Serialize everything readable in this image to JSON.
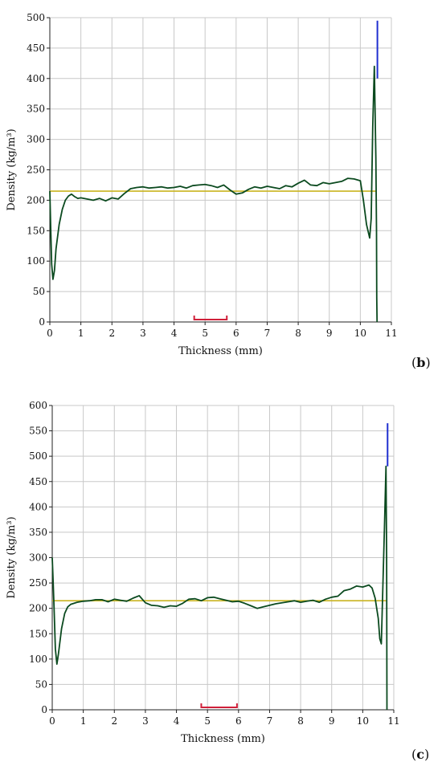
{
  "colors": {
    "profile": "#0b4a1f",
    "mean_line": "#c9b420",
    "peak": "#1f2fd0",
    "marker": "#d0203a",
    "grid": "#c8c8c8",
    "axis": "#222222"
  },
  "panels": [
    {
      "label_open": "(",
      "label_letter": "b",
      "label_close": ")"
    },
    {
      "label_open": "(",
      "label_letter": "c",
      "label_close": ")"
    }
  ],
  "chart_data": [
    {
      "type": "line",
      "title": "",
      "xlabel": "Thickness (mm)",
      "ylabel": "Density (kg/m³)",
      "xlim": [
        0,
        11
      ],
      "ylim": [
        0,
        500
      ],
      "xticks": [
        "0",
        "1",
        "2",
        "3",
        "4",
        "5",
        "6",
        "7",
        "8",
        "9",
        "10",
        "11"
      ],
      "yticks": [
        "0",
        "50",
        "100",
        "150",
        "200",
        "250",
        "300",
        "350",
        "400",
        "450",
        "500"
      ],
      "grid": true,
      "series": [
        {
          "x": [
            0.0,
            0.03,
            0.06,
            0.1,
            0.15,
            0.2,
            0.3,
            0.4,
            0.5,
            0.6,
            0.7,
            0.8,
            0.9,
            1.0,
            1.2,
            1.4,
            1.6,
            1.8,
            2.0,
            2.2,
            2.4,
            2.6,
            2.8,
            3.0,
            3.2,
            3.4,
            3.6,
            3.8,
            4.0,
            4.2,
            4.4,
            4.6,
            4.8,
            5.0,
            5.2,
            5.4,
            5.6,
            5.8,
            6.0,
            6.2,
            6.4,
            6.6,
            6.8,
            7.0,
            7.2,
            7.4,
            7.6,
            7.8,
            8.0,
            8.2,
            8.4,
            8.6,
            8.8,
            9.0,
            9.2,
            9.4,
            9.6,
            9.8,
            10.0,
            10.1,
            10.2,
            10.3,
            10.35,
            10.4,
            10.45,
            10.5,
            10.52,
            10.53,
            10.54
          ],
          "y": [
            215,
            150,
            95,
            70,
            85,
            120,
            160,
            185,
            200,
            207,
            210,
            206,
            203,
            204,
            202,
            200,
            203,
            199,
            204,
            202,
            211,
            219,
            221,
            222,
            220,
            221,
            222,
            220,
            221,
            223,
            220,
            224,
            225,
            226,
            224,
            221,
            225,
            217,
            210,
            212,
            218,
            222,
            220,
            223,
            221,
            219,
            224,
            222,
            228,
            233,
            225,
            224,
            229,
            227,
            229,
            231,
            236,
            235,
            232,
            200,
            160,
            138,
            170,
            320,
            420,
            270,
            150,
            40,
            0
          ]
        }
      ],
      "mean_line": {
        "y": 215,
        "x_start": 0,
        "x_end": 10.5
      },
      "peak_line": {
        "x": 10.55,
        "y_start": 400,
        "y_end": 495
      },
      "interval_marker": {
        "x_start": 4.65,
        "x_end": 5.7
      }
    },
    {
      "type": "line",
      "title": "",
      "xlabel": "Thickness (mm)",
      "ylabel": "Density (kg/m³)",
      "xlim": [
        0,
        11
      ],
      "ylim": [
        0,
        600
      ],
      "xticks": [
        "0",
        "1",
        "2",
        "3",
        "4",
        "5",
        "6",
        "7",
        "8",
        "9",
        "10",
        "11"
      ],
      "yticks": [
        "0",
        "50",
        "100",
        "150",
        "200",
        "250",
        "300",
        "350",
        "400",
        "450",
        "500",
        "550",
        "600"
      ],
      "grid": true,
      "series": [
        {
          "x": [
            0.0,
            0.03,
            0.06,
            0.1,
            0.15,
            0.2,
            0.3,
            0.4,
            0.5,
            0.6,
            0.8,
            1.0,
            1.2,
            1.4,
            1.6,
            1.8,
            2.0,
            2.2,
            2.4,
            2.6,
            2.8,
            3.0,
            3.2,
            3.4,
            3.6,
            3.8,
            4.0,
            4.2,
            4.4,
            4.6,
            4.8,
            5.0,
            5.2,
            5.4,
            5.6,
            5.8,
            6.0,
            6.2,
            6.4,
            6.6,
            6.8,
            7.0,
            7.2,
            7.4,
            7.6,
            7.8,
            8.0,
            8.2,
            8.4,
            8.6,
            8.8,
            9.0,
            9.2,
            9.4,
            9.6,
            9.8,
            10.0,
            10.2,
            10.3,
            10.4,
            10.5,
            10.55,
            10.6,
            10.7,
            10.75,
            10.77,
            10.78
          ],
          "y": [
            300,
            250,
            200,
            120,
            90,
            110,
            160,
            190,
            203,
            208,
            212,
            214,
            215,
            217,
            217,
            213,
            218,
            216,
            214,
            220,
            225,
            211,
            206,
            205,
            202,
            205,
            204,
            210,
            218,
            219,
            215,
            221,
            222,
            219,
            216,
            213,
            214,
            210,
            205,
            200,
            203,
            206,
            209,
            211,
            213,
            215,
            212,
            214,
            216,
            212,
            218,
            222,
            224,
            235,
            238,
            244,
            242,
            246,
            240,
            220,
            180,
            140,
            130,
            360,
            480,
            300,
            0
          ]
        }
      ],
      "mean_line": {
        "y": 215,
        "x_start": 0,
        "x_end": 10.75
      },
      "peak_line": {
        "x": 10.8,
        "y_start": 480,
        "y_end": 565
      },
      "interval_marker": {
        "x_start": 4.8,
        "x_end": 5.95
      }
    }
  ]
}
